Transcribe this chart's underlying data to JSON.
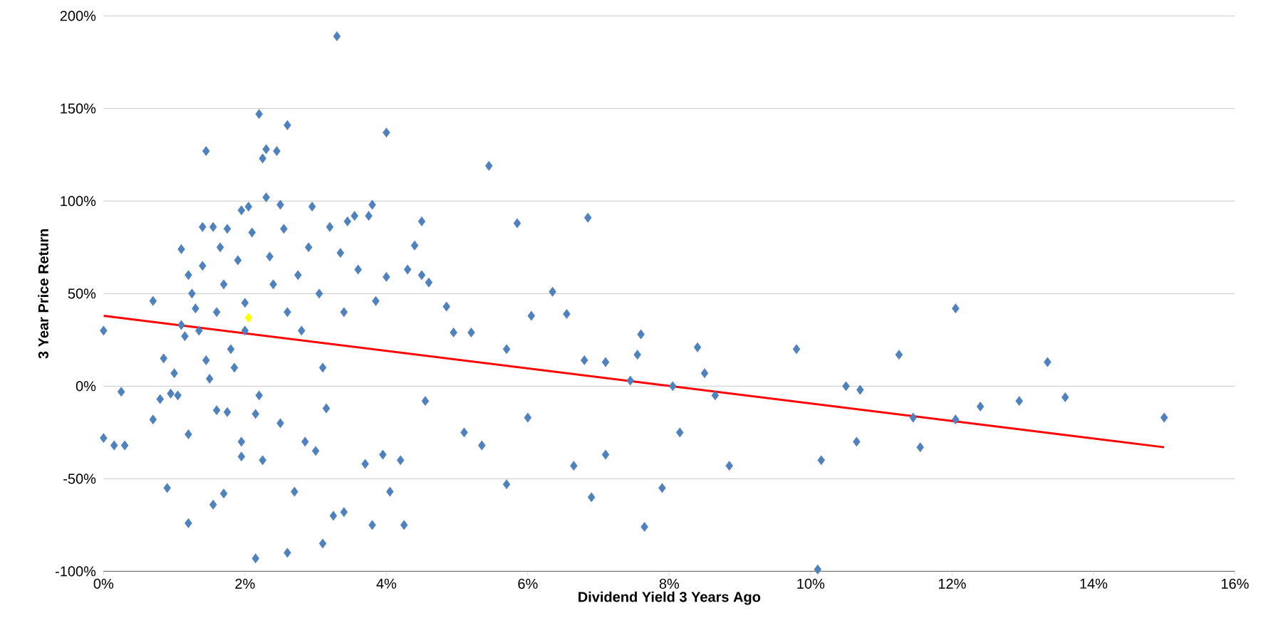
{
  "chart_data": {
    "type": "scatter",
    "xlabel": "Dividend Yield 3 Years Ago",
    "ylabel": "3 Year Price Return",
    "xlim": [
      0,
      16
    ],
    "ylim": [
      -100,
      200
    ],
    "xticks": [
      {
        "value": 0,
        "label": "0%"
      },
      {
        "value": 2,
        "label": "2%"
      },
      {
        "value": 4,
        "label": "4%"
      },
      {
        "value": 6,
        "label": "6%"
      },
      {
        "value": 8,
        "label": "8%"
      },
      {
        "value": 10,
        "label": "10%"
      },
      {
        "value": 12,
        "label": "12%"
      },
      {
        "value": 14,
        "label": "14%"
      },
      {
        "value": 16,
        "label": "16%"
      }
    ],
    "yticks": [
      {
        "value": -100,
        "label": "-100%"
      },
      {
        "value": -50,
        "label": "-50%"
      },
      {
        "value": 0,
        "label": "0%"
      },
      {
        "value": 50,
        "label": "50%"
      },
      {
        "value": 100,
        "label": "100%"
      },
      {
        "value": 150,
        "label": "150%"
      },
      {
        "value": 200,
        "label": "200%"
      }
    ],
    "grid": "y",
    "marker": "diamond",
    "series": [
      {
        "color": "#4f81bd",
        "x": [
          0.0,
          0.0,
          0.15,
          0.3,
          0.25,
          0.7,
          0.7,
          0.8,
          0.85,
          0.9,
          0.95,
          1.0,
          1.05,
          1.1,
          1.1,
          1.15,
          1.2,
          1.2,
          1.2,
          1.25,
          1.3,
          1.35,
          1.4,
          1.4,
          1.45,
          1.45,
          1.5,
          1.55,
          1.55,
          1.6,
          1.6,
          1.65,
          1.7,
          1.7,
          1.75,
          1.75,
          1.8,
          1.85,
          1.9,
          1.95,
          1.95,
          1.95,
          2.0,
          2.0,
          2.05,
          2.1,
          2.15,
          2.15,
          2.2,
          2.2,
          2.25,
          2.25,
          2.3,
          2.3,
          2.35,
          2.4,
          2.45,
          2.5,
          2.5,
          2.55,
          2.6,
          2.6,
          2.6,
          2.7,
          2.75,
          2.8,
          2.85,
          2.9,
          2.95,
          3.0,
          3.05,
          3.1,
          3.1,
          3.15,
          3.2,
          3.25,
          3.3,
          3.35,
          3.4,
          3.4,
          3.45,
          3.55,
          3.6,
          3.7,
          3.75,
          3.8,
          3.8,
          3.85,
          3.95,
          4.0,
          4.0,
          4.05,
          4.2,
          4.25,
          4.3,
          4.4,
          4.5,
          4.5,
          4.55,
          4.6,
          4.85,
          4.95,
          5.1,
          5.2,
          5.35,
          5.45,
          5.7,
          5.7,
          5.85,
          6.05,
          6.0,
          6.35,
          6.55,
          6.65,
          6.8,
          6.85,
          6.9,
          7.1,
          7.1,
          7.45,
          7.55,
          7.65,
          7.6,
          7.9,
          8.05,
          8.15,
          8.4,
          8.5,
          8.65,
          8.85,
          9.8,
          10.1,
          10.15,
          10.5,
          10.65,
          10.7,
          11.25,
          11.45,
          11.55,
          12.05,
          12.05,
          12.4,
          12.95,
          13.35,
          13.6,
          15.0
        ],
        "values": [
          30,
          -28,
          -32,
          -32,
          -3,
          46,
          -18,
          -7,
          15,
          -55,
          -4,
          7,
          -5,
          74,
          33,
          27,
          60,
          -26,
          -74,
          50,
          42,
          30,
          86,
          65,
          127,
          14,
          4,
          86,
          -64,
          -13,
          40,
          75,
          -58,
          55,
          85,
          -14,
          20,
          10,
          68,
          -30,
          -38,
          95,
          45,
          30,
          97,
          83,
          -15,
          -93,
          -5,
          147,
          123,
          -40,
          102,
          128,
          70,
          55,
          127,
          98,
          -20,
          85,
          141,
          -90,
          40,
          -57,
          60,
          30,
          -30,
          75,
          97,
          -35,
          50,
          10,
          -85,
          -12,
          86,
          -70,
          189,
          72,
          -68,
          40,
          89,
          92,
          63,
          -42,
          92,
          -75,
          98,
          46,
          -37,
          137,
          59,
          -57,
          -40,
          -75,
          63,
          76,
          60,
          89,
          -8,
          56,
          43,
          29,
          -25,
          29,
          -32,
          119,
          20,
          -53,
          88,
          38,
          -17,
          51,
          39,
          -43,
          14,
          91,
          -60,
          13,
          -37,
          3,
          17,
          -76,
          28,
          -55,
          0,
          -25,
          21,
          7,
          -5,
          -43,
          20,
          -99,
          -40,
          0,
          -30,
          -2,
          17,
          -17,
          -33,
          42,
          -18,
          -11,
          -8,
          13,
          -6,
          -17
        ]
      },
      {
        "color": "#ffff00",
        "x": [
          2.05
        ],
        "values": [
          37
        ]
      },
      {
        "type": "line",
        "marker": "none",
        "color": "#ff0000",
        "x": [
          0,
          15
        ],
        "values": [
          38,
          -33
        ]
      }
    ]
  }
}
